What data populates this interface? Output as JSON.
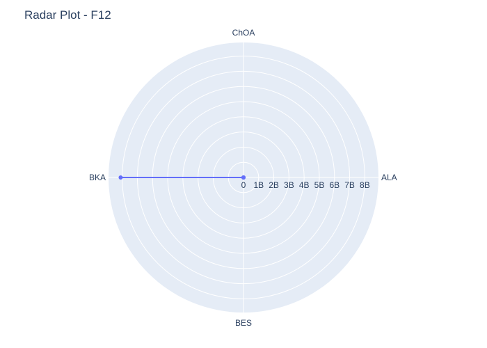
{
  "chart_data": {
    "type": "radar",
    "title": "Radar Plot - F12",
    "categories": [
      "ALA",
      "ChOA",
      "BKA",
      "BES"
    ],
    "series": [
      {
        "values": [
          0,
          0,
          8100000000,
          0
        ],
        "color": "#636efa"
      }
    ],
    "radial_axis": {
      "range": [
        0,
        8900000000
      ],
      "tickvals": [
        0,
        1000000000,
        2000000000,
        3000000000,
        4000000000,
        5000000000,
        6000000000,
        7000000000,
        8000000000
      ],
      "ticktext": [
        "0",
        "1B",
        "2B",
        "3B",
        "4B",
        "5B",
        "6B",
        "7B",
        "8B"
      ]
    },
    "angular_axis": {
      "start": "right",
      "direction": "counterclockwise"
    },
    "grid": true,
    "legend": false,
    "colors": {
      "background": "#e5ecf6",
      "grid": "#ffffff",
      "text": "#2a3f5f"
    }
  }
}
